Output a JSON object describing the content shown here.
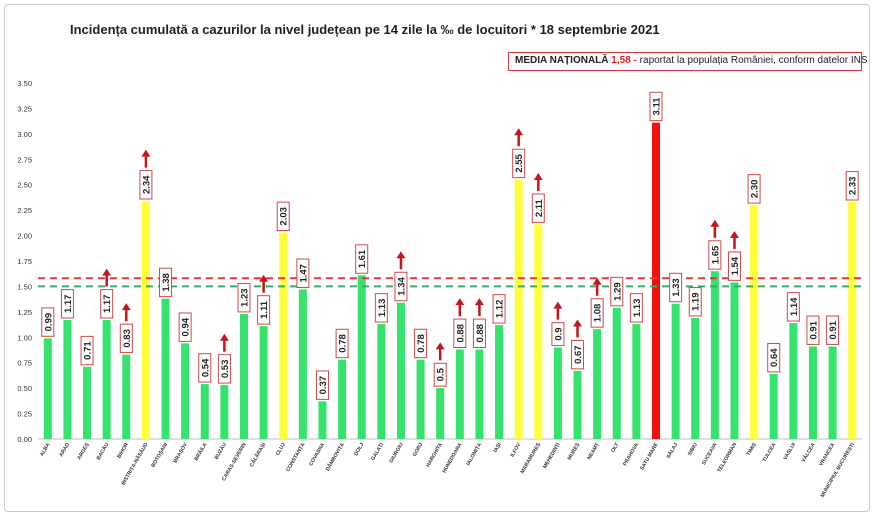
{
  "title": "Incidența cumulată a cazurilor la nivel județean pe 14 zile la ‰ de locuitori * 18 septembrie 2021",
  "legend": {
    "label": "MEDIA NAȚIONALĂ",
    "value": "1,58",
    "dash": "-",
    "note": "raportat la populația României, conform datelor INS"
  },
  "colors": {
    "green": "#34e36c",
    "yellow": "#ffff3a",
    "red": "#f01010",
    "red_line": "#e23a3a",
    "green_line": "#3aa86a",
    "arrow": "#c8141c"
  },
  "chart_data": {
    "type": "bar",
    "ylim": [
      0,
      3.5
    ],
    "yticks": [
      "0.00",
      "0.25",
      "0.50",
      "0.75",
      "1.00",
      "1.25",
      "1.50",
      "1.75",
      "2.00",
      "2.25",
      "2.50",
      "2.75",
      "3.00",
      "3.25",
      "3.50"
    ],
    "reference_lines": [
      {
        "value": 1.58,
        "color": "red",
        "style": "dashed"
      },
      {
        "value": 1.5,
        "color": "green",
        "style": "dashed"
      }
    ],
    "categories": [
      "ALBA",
      "ARAD",
      "ARGEȘ",
      "BACĂU",
      "BIHOR",
      "BISTRIȚA-NĂSĂUD",
      "BOTOȘANI",
      "BRAȘOV",
      "BRĂILA",
      "BUZĂU",
      "CARAȘ-SEVERIN",
      "CĂLĂRAȘI",
      "CLUJ",
      "CONSTANȚA",
      "COVASNA",
      "DÂMBOVIȚA",
      "DOLJ",
      "GALAȚI",
      "GIURGIU",
      "GORJ",
      "HARGHITA",
      "HUNEDOARA",
      "IALOMIȚA",
      "IAȘI",
      "ILFOV",
      "MARAMUREȘ",
      "MEHEDINȚI",
      "MUREȘ",
      "NEAMȚ",
      "OLT",
      "PRAHOVA",
      "SATU MARE",
      "SĂLAJ",
      "SIBIU",
      "SUCEAVA",
      "TELEORMAN",
      "TIMIȘ",
      "TULCEA",
      "VASLUI",
      "VÂLCEA",
      "VRANCEA",
      "MUNICIPIUL BUCUREȘTI"
    ],
    "values": [
      0.99,
      1.17,
      0.71,
      1.17,
      0.83,
      2.34,
      1.38,
      0.94,
      0.54,
      0.53,
      1.23,
      1.11,
      2.03,
      1.47,
      0.37,
      0.78,
      1.61,
      1.13,
      1.34,
      0.78,
      0.5,
      0.88,
      0.88,
      1.12,
      2.55,
      2.11,
      0.9,
      0.67,
      1.08,
      1.29,
      1.13,
      3.11,
      1.33,
      1.19,
      1.65,
      1.54,
      2.3,
      0.64,
      1.14,
      0.91,
      0.91,
      2.33
    ],
    "labels": [
      "0.99",
      "1.17",
      "0.71",
      "1.17",
      "0.83",
      "2.34",
      "1.38",
      "0.94",
      "0.54",
      "0.53",
      "1.23",
      "1.11",
      "2.03",
      "1.47",
      "0.37",
      "0.78",
      "1.61",
      "1.13",
      "1.34",
      "0.78",
      "0.5",
      "0.88",
      "0.88",
      "1.12",
      "2.55",
      "2.11",
      "0.9",
      "0.67",
      "1.08",
      "1.29",
      "1.13",
      "3.11",
      "1.33",
      "1.19",
      "1.65",
      "1.54",
      "2.30",
      "0.64",
      "1.14",
      "0.91",
      "0.91",
      "2.33"
    ],
    "bar_colors": [
      "green",
      "green",
      "green",
      "green",
      "green",
      "yellow",
      "green",
      "green",
      "green",
      "green",
      "green",
      "green",
      "yellow",
      "green",
      "green",
      "green",
      "green",
      "green",
      "green",
      "green",
      "green",
      "green",
      "green",
      "green",
      "yellow",
      "yellow",
      "green",
      "green",
      "green",
      "green",
      "green",
      "red",
      "green",
      "green",
      "green",
      "green",
      "yellow",
      "green",
      "green",
      "green",
      "green",
      "yellow"
    ],
    "up_arrows": [
      false,
      false,
      false,
      true,
      true,
      true,
      false,
      false,
      false,
      true,
      false,
      true,
      false,
      false,
      false,
      false,
      false,
      false,
      true,
      false,
      true,
      true,
      true,
      false,
      true,
      true,
      true,
      true,
      true,
      false,
      false,
      false,
      false,
      false,
      true,
      true,
      false,
      false,
      false,
      false,
      false,
      false
    ]
  }
}
